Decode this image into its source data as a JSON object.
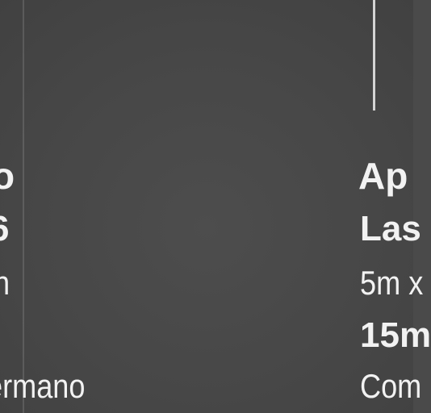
{
  "left_fragment": {
    "line1": "o",
    "line2": "6",
    "line3": "n",
    "line4": "ermano"
  },
  "right_fragment": {
    "line1": "Ap",
    "line2": "Las",
    "line3": "5m x",
    "line4": "15m",
    "line5": "Com"
  }
}
